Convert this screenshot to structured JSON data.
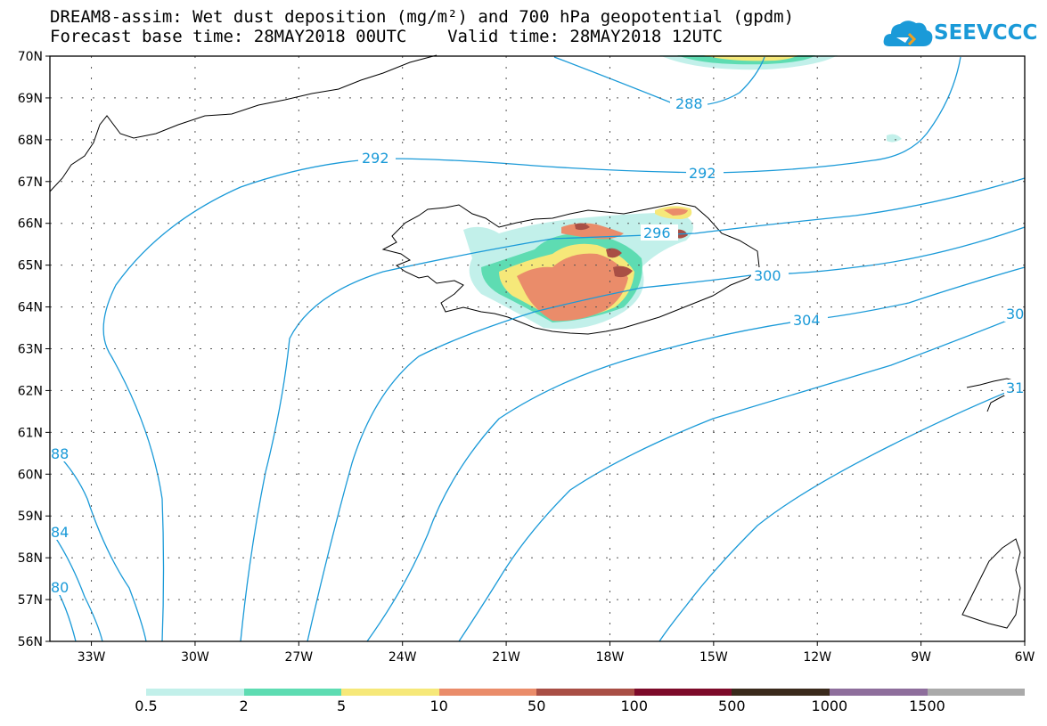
{
  "header": {
    "title_line1": "DREAM8-assim: Wet dust deposition (mg/m²) and 700 hPa geopotential (gpdm)",
    "title_line2": "Forecast base time: 28MAY2018 00UTC    Valid time: 28MAY2018 12UTC",
    "logo_text": "SEEVCCC"
  },
  "map": {
    "lat_labels": [
      "70N",
      "69N",
      "68N",
      "67N",
      "66N",
      "65N",
      "64N",
      "63N",
      "62N",
      "61N",
      "60N",
      "59N",
      "58N",
      "57N",
      "56N"
    ],
    "lon_labels": [
      "33W",
      "30W",
      "27W",
      "24W",
      "21W",
      "18W",
      "15W",
      "12W",
      "9W",
      "6W"
    ],
    "contour_labels": [
      "288",
      "292",
      "292",
      "296",
      "300",
      "304",
      "30",
      "31",
      "88",
      "84",
      "80"
    ],
    "contour_color": "#1a9ad8",
    "coast_color": "#000000"
  },
  "legend": {
    "labels": [
      "0.5",
      "2",
      "5",
      "10",
      "50",
      "100",
      "500",
      "1000",
      "1500"
    ],
    "colors": [
      "#c2f0ea",
      "#5edcb2",
      "#f6e879",
      "#ea8c6a",
      "#a94f45",
      "#7d0b2a",
      "#3a2a1c",
      "#8e6e9c",
      "#aaaaaa"
    ]
  }
}
